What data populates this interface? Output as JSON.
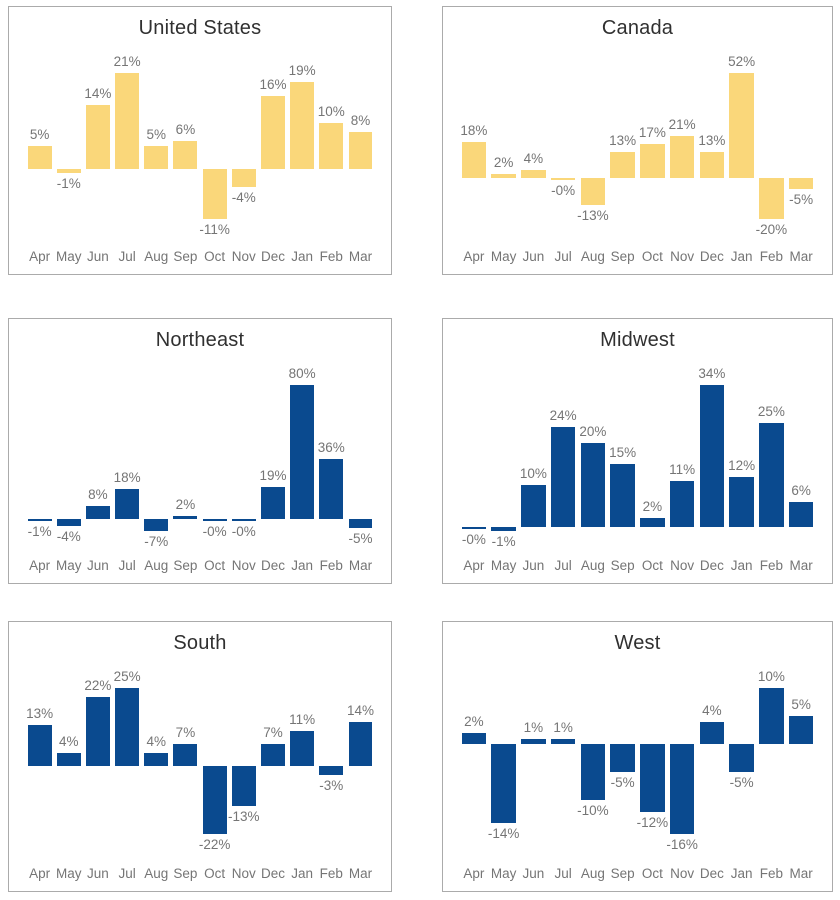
{
  "colors": {
    "us_canada_bar": "#FAD77A",
    "region_bar": "#0A4A8F",
    "panel_border": "#ABABAB",
    "title_text": "#303030",
    "label_text": "#757575",
    "background": "#FFFFFF"
  },
  "chart_data": [
    {
      "type": "bar",
      "title": "United States",
      "categories": [
        "Apr",
        "May",
        "Jun",
        "Jul",
        "Aug",
        "Sep",
        "Oct",
        "Nov",
        "Dec",
        "Jan",
        "Feb",
        "Mar"
      ],
      "values": [
        5,
        -1,
        14,
        21,
        5,
        6,
        -11,
        -4,
        16,
        19,
        10,
        8
      ],
      "labels": [
        "5%",
        "-1%",
        "14%",
        "21%",
        "5%",
        "6%",
        "-11%",
        "-4%",
        "16%",
        "19%",
        "10%",
        "8%"
      ],
      "color": "#FAD77A",
      "value_format": "percent",
      "xlabel": "",
      "ylabel": "",
      "grid": false,
      "legend": false,
      "axis_line": false
    },
    {
      "type": "bar",
      "title": "Canada",
      "categories": [
        "Apr",
        "May",
        "Jun",
        "Jul",
        "Aug",
        "Sep",
        "Oct",
        "Nov",
        "Dec",
        "Jan",
        "Feb",
        "Mar"
      ],
      "values": [
        18,
        2,
        4,
        0,
        -13,
        13,
        17,
        21,
        13,
        52,
        -20,
        -5
      ],
      "labels": [
        "18%",
        "2%",
        "4%",
        "-0%",
        "-13%",
        "13%",
        "17%",
        "21%",
        "13%",
        "52%",
        "-20%",
        "-5%"
      ],
      "color": "#FAD77A",
      "value_format": "percent",
      "xlabel": "",
      "ylabel": "",
      "grid": false,
      "legend": false,
      "axis_line": false
    },
    {
      "type": "bar",
      "title": "Northeast",
      "categories": [
        "Apr",
        "May",
        "Jun",
        "Jul",
        "Aug",
        "Sep",
        "Oct",
        "Nov",
        "Dec",
        "Jan",
        "Feb",
        "Mar"
      ],
      "values": [
        -1,
        -4,
        8,
        18,
        -7,
        2,
        0,
        0,
        19,
        80,
        36,
        -5
      ],
      "labels": [
        "-1%",
        "-4%",
        "8%",
        "18%",
        "-7%",
        "2%",
        "-0%",
        "-0%",
        "19%",
        "80%",
        "36%",
        "-5%"
      ],
      "color": "#0A4A8F",
      "value_format": "percent",
      "xlabel": "",
      "ylabel": "",
      "grid": false,
      "legend": false,
      "axis_line": false
    },
    {
      "type": "bar",
      "title": "Midwest",
      "categories": [
        "Apr",
        "May",
        "Jun",
        "Jul",
        "Aug",
        "Sep",
        "Oct",
        "Nov",
        "Dec",
        "Jan",
        "Feb",
        "Mar"
      ],
      "values": [
        0,
        -1,
        10,
        24,
        20,
        15,
        2,
        11,
        34,
        12,
        25,
        6
      ],
      "labels": [
        "-0%",
        "-1%",
        "10%",
        "24%",
        "20%",
        "15%",
        "2%",
        "11%",
        "34%",
        "12%",
        "25%",
        "6%"
      ],
      "color": "#0A4A8F",
      "value_format": "percent",
      "xlabel": "",
      "ylabel": "",
      "grid": false,
      "legend": false,
      "axis_line": false
    },
    {
      "type": "bar",
      "title": "South",
      "categories": [
        "Apr",
        "May",
        "Jun",
        "Jul",
        "Aug",
        "Sep",
        "Oct",
        "Nov",
        "Dec",
        "Jan",
        "Feb",
        "Mar"
      ],
      "values": [
        13,
        4,
        22,
        25,
        4,
        7,
        -22,
        -13,
        7,
        11,
        -3,
        14
      ],
      "labels": [
        "13%",
        "4%",
        "22%",
        "25%",
        "4%",
        "7%",
        "-22%",
        "-13%",
        "7%",
        "11%",
        "-3%",
        "14%"
      ],
      "color": "#0A4A8F",
      "value_format": "percent",
      "xlabel": "",
      "ylabel": "",
      "grid": false,
      "legend": false,
      "axis_line": false
    },
    {
      "type": "bar",
      "title": "West",
      "categories": [
        "Apr",
        "May",
        "Jun",
        "Jul",
        "Aug",
        "Sep",
        "Oct",
        "Nov",
        "Dec",
        "Jan",
        "Feb",
        "Mar"
      ],
      "values": [
        2,
        -14,
        1,
        1,
        -10,
        -5,
        -12,
        -16,
        4,
        -5,
        10,
        5
      ],
      "labels": [
        "2%",
        "-14%",
        "1%",
        "1%",
        "-10%",
        "-5%",
        "-12%",
        "-16%",
        "4%",
        "-5%",
        "10%",
        "5%"
      ],
      "color": "#0A4A8F",
      "value_format": "percent",
      "xlabel": "",
      "ylabel": "",
      "grid": false,
      "legend": false,
      "axis_line": false
    }
  ]
}
